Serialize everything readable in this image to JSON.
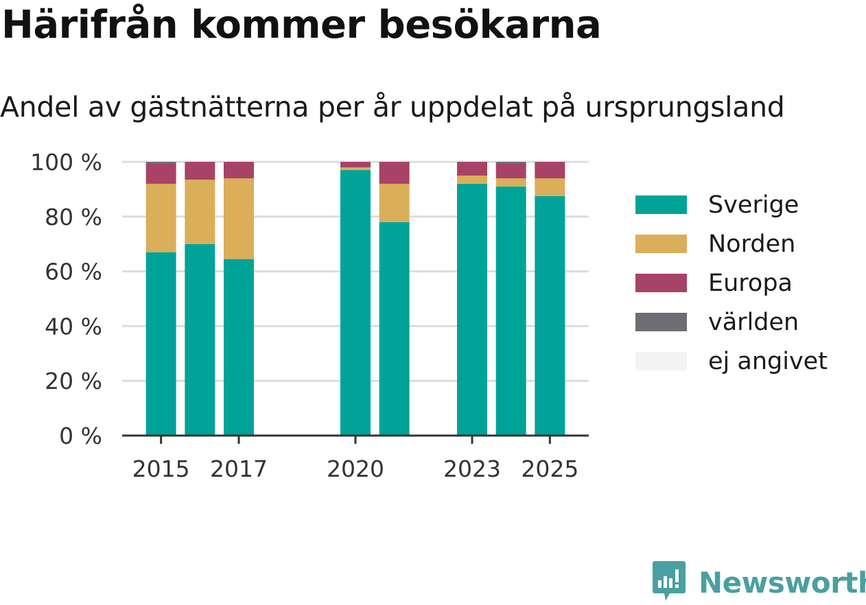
{
  "title": "Härifrån kommer besökarna",
  "subtitle": "Andel av gästnätterna per år uppdelat på ursprungsland",
  "brand": {
    "name": "Newsworthy",
    "icon": "newsworthy-logo-icon"
  },
  "chart_data": {
    "type": "bar",
    "stacked": true,
    "x": [
      2015,
      2016,
      2017,
      2020,
      2021,
      2023,
      2024,
      2025
    ],
    "xticks": [
      "2015",
      "2017",
      "2020",
      "2023",
      "2025"
    ],
    "xtick_values": [
      2015,
      2017,
      2020,
      2023,
      2025
    ],
    "xlim": [
      2014,
      2026
    ],
    "ylim": [
      0,
      100
    ],
    "yticks": [
      0,
      20,
      40,
      60,
      80,
      100
    ],
    "ytick_labels": [
      "0 %",
      "20 %",
      "40 %",
      "60 %",
      "80 %",
      "100 %"
    ],
    "grid": true,
    "legend_position": "right",
    "series": [
      {
        "name": "Sverige",
        "color": "#00a398",
        "values": [
          67,
          70,
          64.5,
          97,
          78,
          92,
          91,
          87.5
        ]
      },
      {
        "name": "Norden",
        "color": "#dbae5a",
        "values": [
          25,
          23.5,
          29.5,
          1,
          14,
          3,
          3,
          6.5
        ]
      },
      {
        "name": "Europa",
        "color": "#a84266",
        "values": [
          7.5,
          6.5,
          6,
          2,
          8,
          5,
          5.5,
          6
        ]
      },
      {
        "name": "världen",
        "color": "#6d6e74",
        "values": [
          0.5,
          0,
          0,
          0,
          0,
          0,
          0.5,
          0
        ]
      },
      {
        "name": "ej angivet",
        "color": "#f4f4f4",
        "values": [
          0,
          0,
          0,
          0,
          0,
          0,
          0,
          0
        ]
      }
    ]
  }
}
